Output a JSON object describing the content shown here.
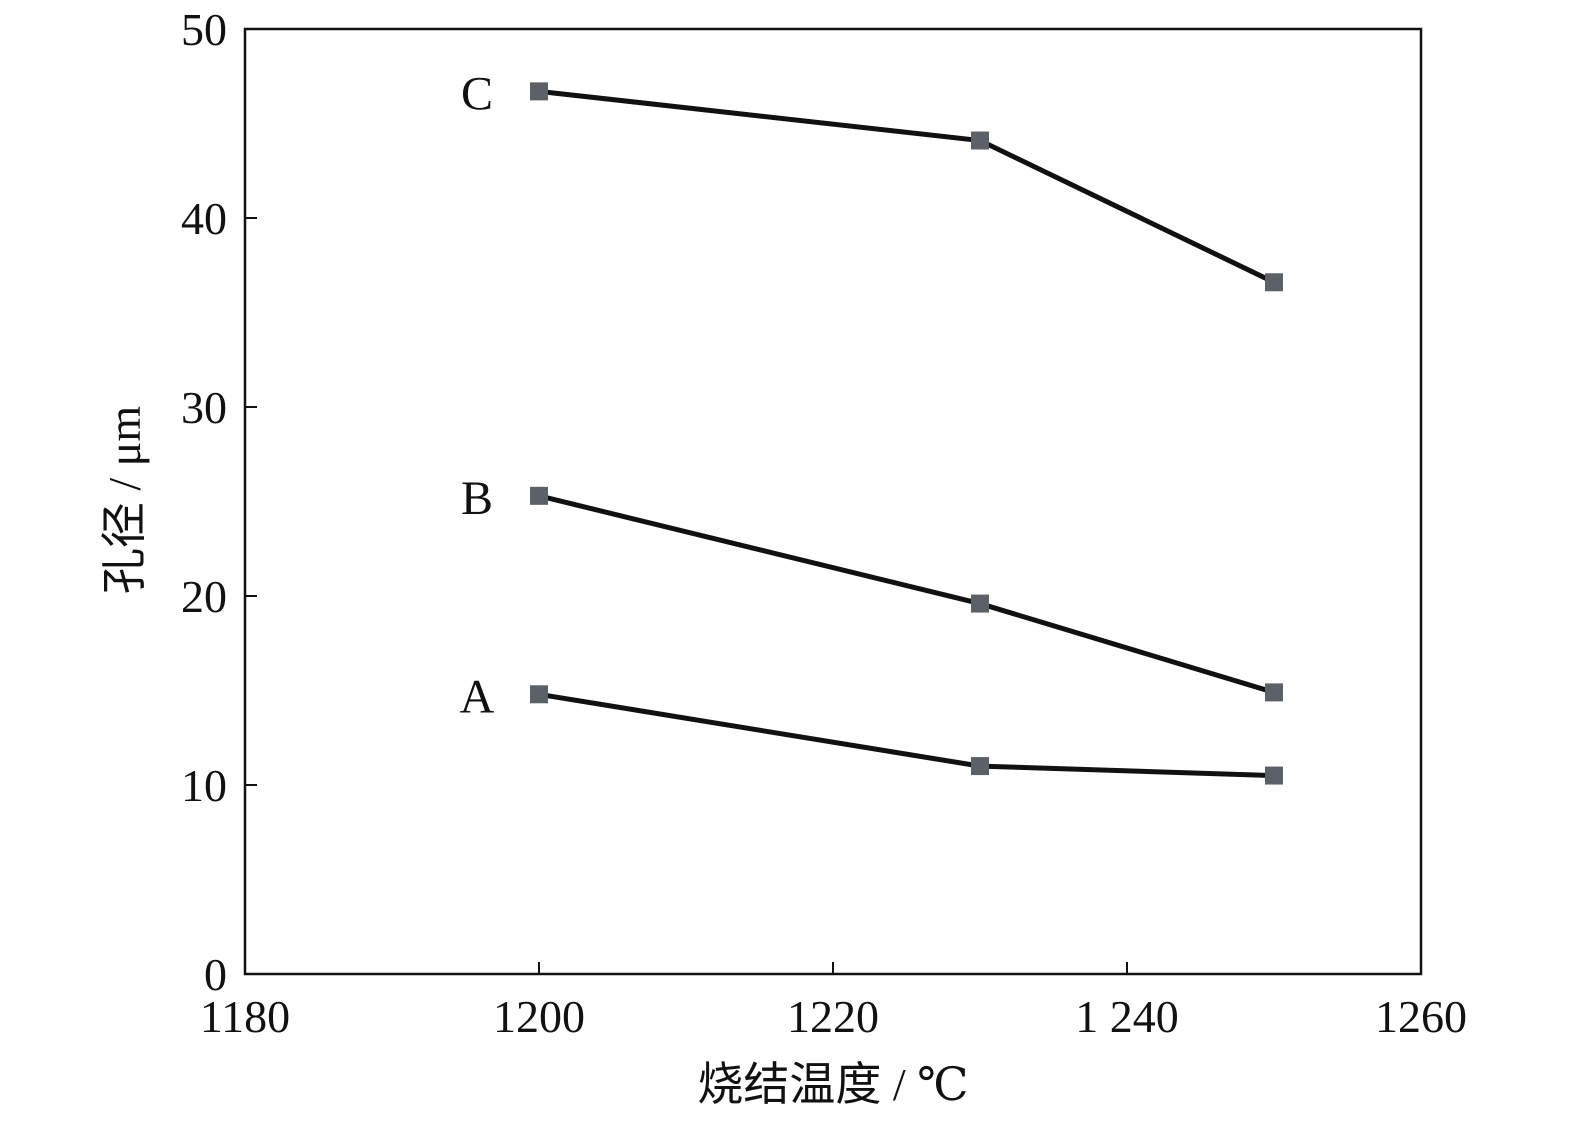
{
  "chart_data": {
    "type": "line",
    "title": "",
    "xlabel": "烧结温度 / ℃",
    "ylabel": "孔径 / μm",
    "xlim": [
      1180,
      1260
    ],
    "ylim": [
      0,
      50
    ],
    "xticks": [
      1180,
      1200,
      1220,
      1240,
      1260
    ],
    "xtick_labels": [
      "1180",
      "1200",
      "1220",
      "1 240",
      "1260"
    ],
    "yticks": [
      0,
      10,
      20,
      30,
      40,
      50
    ],
    "ytick_labels": [
      "0",
      "10",
      "20",
      "30",
      "40",
      "50"
    ],
    "grid": false,
    "x": [
      1200,
      1230,
      1250
    ],
    "series": [
      {
        "name": "A",
        "values": [
          14.8,
          11.0,
          10.5
        ]
      },
      {
        "name": "B",
        "values": [
          25.3,
          19.6,
          14.9
        ]
      },
      {
        "name": "C",
        "values": [
          46.7,
          44.1,
          36.6
        ]
      }
    ],
    "colors": {
      "line": "#111111",
      "marker": "#5b6167",
      "axis": "#111111"
    }
  }
}
